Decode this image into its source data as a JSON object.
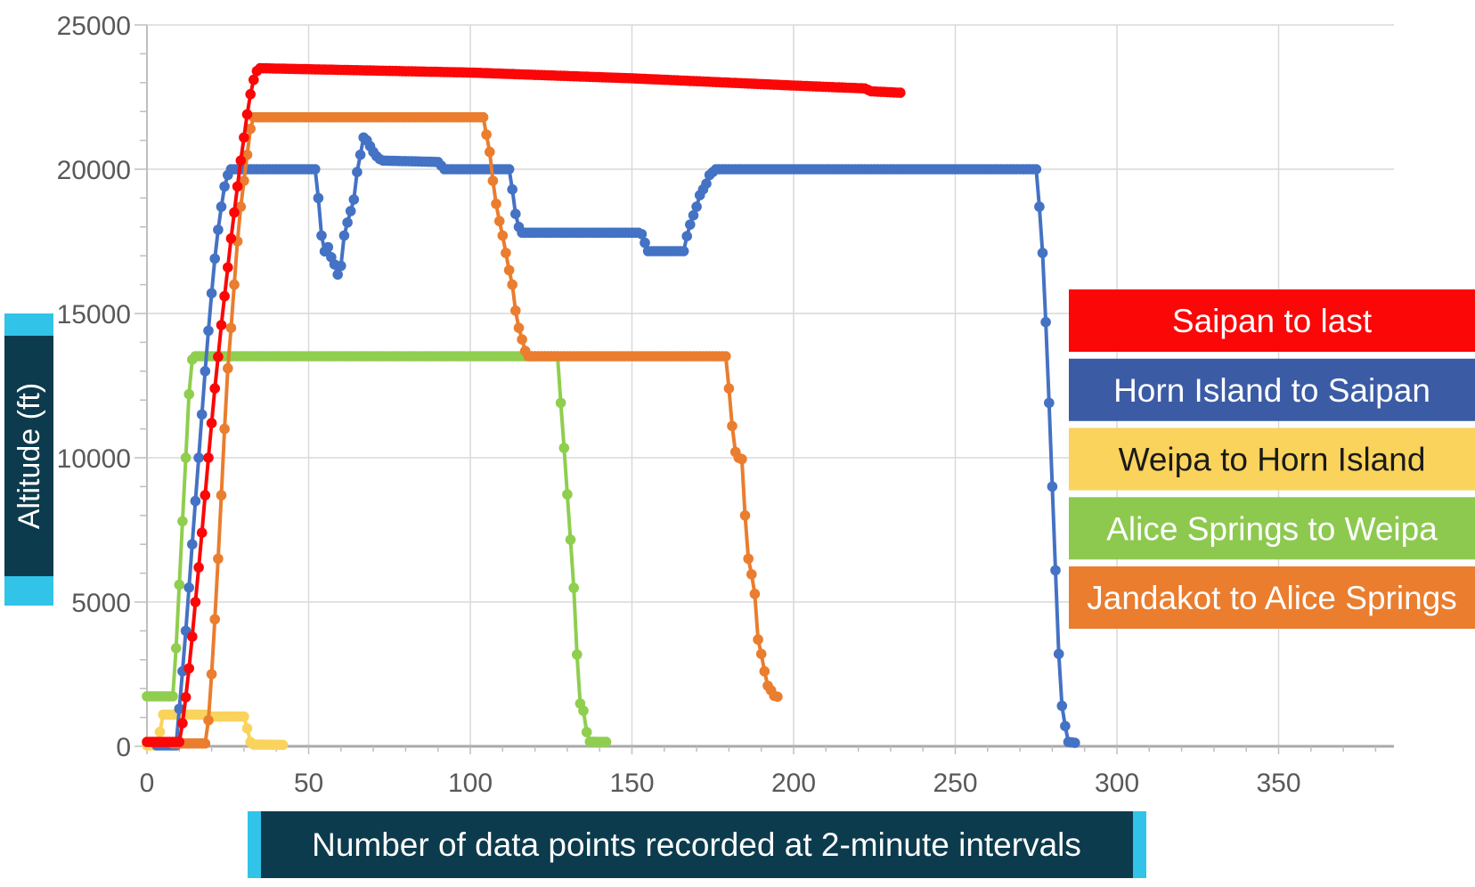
{
  "page": {
    "background": "#ffffff"
  },
  "colors": {
    "grid": "#d9d9d9",
    "axis_line": "#a9a9a9",
    "tick_mark": "#bfbfbf",
    "tick_label": "#595959",
    "title_bar_dark": "#0c3b4d",
    "title_bar_cyan": "#31c3e8",
    "series_red": "#fb0707",
    "series_blue": "#4472c4",
    "series_yellow": "#fad35c",
    "series_green": "#8fce4e",
    "series_orange": "#ea7d2e",
    "legend_blue_box": "#3b5ba5",
    "legend_green_box": "#8dc94f"
  },
  "y_axis": {
    "title": "Altitude (ft)",
    "tick_labels": [
      "0",
      "5000",
      "10000",
      "15000",
      "20000",
      "25000"
    ],
    "tick_values": [
      0,
      5000,
      10000,
      15000,
      20000,
      25000
    ],
    "minor_step": 1000,
    "range": [
      0,
      25000
    ]
  },
  "x_axis": {
    "title": "Number of data points recorded at 2-minute intervals",
    "tick_labels": [
      "0",
      "50",
      "100",
      "150",
      "200",
      "250",
      "300",
      "350"
    ],
    "tick_values": [
      0,
      50,
      100,
      150,
      200,
      250,
      300,
      350
    ],
    "minor_step": 10,
    "range": [
      0,
      385
    ]
  },
  "legend": {
    "items": [
      {
        "label": "Saipan to last",
        "box_color": "#fb0707",
        "text_color": "#ffffff"
      },
      {
        "label": "Horn Island to Saipan",
        "box_color": "#3b5ba5",
        "text_color": "#ffffff"
      },
      {
        "label": "Weipa to Horn Island",
        "box_color": "#fad35c",
        "text_color": "#1a1a1a"
      },
      {
        "label": "Alice Springs to Weipa",
        "box_color": "#8dc94f",
        "text_color": "#ffffff"
      },
      {
        "label": "Jandakot to Alice Springs",
        "box_color": "#ea7d2e",
        "text_color": "#ffffff"
      }
    ]
  },
  "chart_data": {
    "type": "line",
    "title": "",
    "xlabel": "Number of data points recorded at 2-minute intervals",
    "ylabel": "Altitude (ft)",
    "x_range": [
      0,
      385
    ],
    "y_range": [
      0,
      25000
    ],
    "grid": "on",
    "legend_position": "right",
    "marker": "circle",
    "note": "x = index of data point recorded at 2-minute intervals, y = altitude in feet. Anchors are piecewise-linear control points read from the plot; a marker is drawn at every integer index between anchors.",
    "series": [
      {
        "name": "Saipan to last",
        "color": "#fb0707",
        "anchors": [
          [
            0,
            150
          ],
          [
            10,
            150
          ],
          [
            11,
            800
          ],
          [
            12,
            1700
          ],
          [
            13,
            2700
          ],
          [
            14,
            3800
          ],
          [
            15,
            5000
          ],
          [
            16,
            6200
          ],
          [
            17,
            7400
          ],
          [
            18,
            8700
          ],
          [
            19,
            10000
          ],
          [
            20,
            11200
          ],
          [
            21,
            12400
          ],
          [
            22,
            13500
          ],
          [
            23,
            14600
          ],
          [
            24,
            15600
          ],
          [
            25,
            16600
          ],
          [
            26,
            17600
          ],
          [
            27,
            18500
          ],
          [
            28,
            19400
          ],
          [
            29,
            20300
          ],
          [
            30,
            21100
          ],
          [
            31,
            21900
          ],
          [
            32,
            22600
          ],
          [
            33,
            23100
          ],
          [
            34,
            23400
          ],
          [
            35,
            23500
          ],
          [
            100,
            23350
          ],
          [
            150,
            23150
          ],
          [
            200,
            22900
          ],
          [
            222,
            22800
          ],
          [
            224,
            22700
          ],
          [
            233,
            22650
          ]
        ]
      },
      {
        "name": "Horn Island to Saipan",
        "color": "#4472c4",
        "anchors": [
          [
            3,
            30
          ],
          [
            9,
            30
          ],
          [
            10,
            1300
          ],
          [
            11,
            2600
          ],
          [
            12,
            4000
          ],
          [
            13,
            5500
          ],
          [
            14,
            7000
          ],
          [
            15,
            8500
          ],
          [
            16,
            10000
          ],
          [
            17,
            11500
          ],
          [
            18,
            13000
          ],
          [
            19,
            14400
          ],
          [
            20,
            15700
          ],
          [
            21,
            16900
          ],
          [
            22,
            17900
          ],
          [
            23,
            18700
          ],
          [
            24,
            19400
          ],
          [
            25,
            19800
          ],
          [
            26,
            20000
          ],
          [
            52,
            20000
          ],
          [
            53,
            19000
          ],
          [
            54,
            17700
          ],
          [
            55,
            17150
          ],
          [
            56,
            17300
          ],
          [
            57,
            16950
          ],
          [
            58,
            16700
          ],
          [
            59,
            16350
          ],
          [
            60,
            16650
          ],
          [
            61,
            17700
          ],
          [
            62,
            18150
          ],
          [
            63,
            18550
          ],
          [
            64,
            18950
          ],
          [
            65,
            19900
          ],
          [
            66,
            20500
          ],
          [
            67,
            21100
          ],
          [
            68,
            21000
          ],
          [
            69,
            20800
          ],
          [
            70,
            20600
          ],
          [
            71,
            20450
          ],
          [
            72,
            20350
          ],
          [
            73,
            20300
          ],
          [
            90,
            20250
          ],
          [
            92,
            20000
          ],
          [
            112,
            20000
          ],
          [
            113,
            19300
          ],
          [
            114,
            18450
          ],
          [
            115,
            18000
          ],
          [
            116,
            17800
          ],
          [
            152,
            17800
          ],
          [
            153,
            17750
          ],
          [
            154,
            17450
          ],
          [
            155,
            17160
          ],
          [
            166,
            17160
          ],
          [
            167,
            17680
          ],
          [
            168,
            18080
          ],
          [
            169,
            18400
          ],
          [
            170,
            18700
          ],
          [
            171,
            19100
          ],
          [
            172,
            19300
          ],
          [
            173,
            19500
          ],
          [
            174,
            19800
          ],
          [
            176,
            20000
          ],
          [
            275,
            20000
          ],
          [
            276,
            18700
          ],
          [
            277,
            17100
          ],
          [
            278,
            14700
          ],
          [
            279,
            11900
          ],
          [
            280,
            9000
          ],
          [
            281,
            6100
          ],
          [
            282,
            3200
          ],
          [
            283,
            1400
          ],
          [
            284,
            700
          ],
          [
            285,
            150
          ],
          [
            287,
            120
          ]
        ]
      },
      {
        "name": "Weipa to Horn Island",
        "color": "#fad35c",
        "anchors": [
          [
            0,
            30
          ],
          [
            3,
            30
          ],
          [
            4,
            500
          ],
          [
            5,
            1100
          ],
          [
            18,
            1100
          ],
          [
            19,
            1030
          ],
          [
            30,
            1030
          ],
          [
            31,
            620
          ],
          [
            32,
            150
          ],
          [
            33,
            60
          ],
          [
            42,
            50
          ]
        ]
      },
      {
        "name": "Alice Springs to Weipa",
        "color": "#8fce4e",
        "anchors": [
          [
            0,
            1730
          ],
          [
            8,
            1730
          ],
          [
            9,
            3400
          ],
          [
            10,
            5600
          ],
          [
            11,
            7800
          ],
          [
            12,
            10000
          ],
          [
            13,
            12200
          ],
          [
            14,
            13400
          ],
          [
            15,
            13520
          ],
          [
            127,
            13520
          ],
          [
            128,
            11900
          ],
          [
            129,
            10340
          ],
          [
            130,
            8730
          ],
          [
            131,
            7160
          ],
          [
            132,
            5490
          ],
          [
            133,
            3180
          ],
          [
            134,
            1480
          ],
          [
            135,
            1230
          ],
          [
            136,
            490
          ],
          [
            137,
            160
          ],
          [
            142,
            150
          ]
        ]
      },
      {
        "name": "Jandakot to Alice Springs",
        "color": "#ea7d2e",
        "anchors": [
          [
            8,
            100
          ],
          [
            18,
            100
          ],
          [
            19,
            900
          ],
          [
            20,
            2500
          ],
          [
            21,
            4400
          ],
          [
            22,
            6500
          ],
          [
            23,
            8700
          ],
          [
            24,
            11000
          ],
          [
            25,
            13100
          ],
          [
            26,
            14500
          ],
          [
            27,
            16000
          ],
          [
            28,
            17500
          ],
          [
            29,
            18700
          ],
          [
            30,
            19600
          ],
          [
            31,
            20500
          ],
          [
            32,
            21400
          ],
          [
            33,
            21800
          ],
          [
            104,
            21800
          ],
          [
            105,
            21200
          ],
          [
            106,
            20600
          ],
          [
            107,
            19600
          ],
          [
            108,
            18800
          ],
          [
            109,
            18200
          ],
          [
            110,
            17700
          ],
          [
            111,
            17100
          ],
          [
            112,
            16500
          ],
          [
            113,
            16000
          ],
          [
            114,
            15100
          ],
          [
            115,
            14500
          ],
          [
            116,
            14100
          ],
          [
            117,
            13700
          ],
          [
            118,
            13520
          ],
          [
            179,
            13520
          ],
          [
            180,
            12400
          ],
          [
            181,
            11100
          ],
          [
            182,
            10200
          ],
          [
            183,
            10000
          ],
          [
            184,
            9950
          ],
          [
            185,
            8000
          ],
          [
            186,
            6500
          ],
          [
            187,
            5960
          ],
          [
            188,
            5280
          ],
          [
            189,
            3700
          ],
          [
            190,
            3200
          ],
          [
            191,
            2600
          ],
          [
            192,
            2100
          ],
          [
            193,
            1940
          ],
          [
            194,
            1750
          ],
          [
            195,
            1720
          ]
        ]
      }
    ],
    "draw_order": [
      "Weipa to Horn Island",
      "Alice Springs to Weipa",
      "Horn Island to Saipan",
      "Jandakot to Alice Springs",
      "Saipan to last"
    ]
  }
}
